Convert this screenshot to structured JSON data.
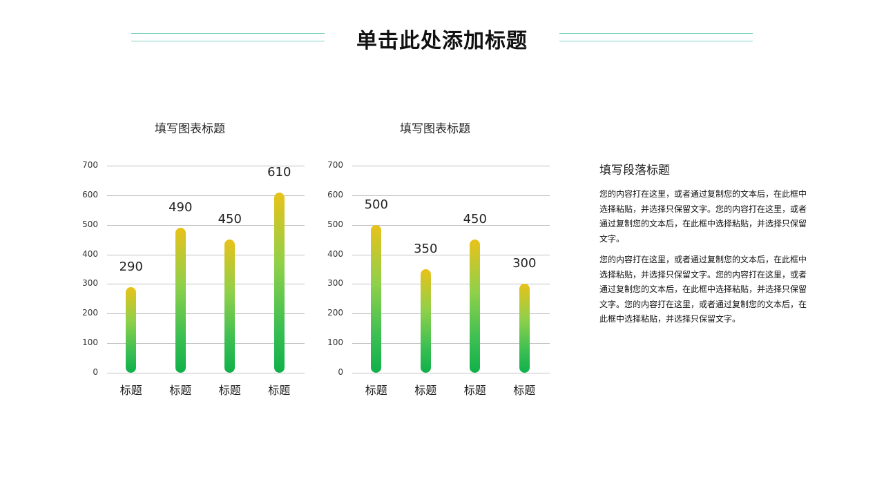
{
  "header": {
    "title": "单击此处添加标题",
    "accent_line_color": "#7fd3bf"
  },
  "chart_data": [
    {
      "type": "bar",
      "title": "填写图表标题",
      "categories": [
        "标题",
        "标题",
        "标题",
        "标题"
      ],
      "values": [
        290,
        490,
        450,
        610
      ],
      "xlabel": "",
      "ylabel": "",
      "ylim": [
        0,
        700
      ],
      "yticks": [
        0,
        100,
        200,
        300,
        400,
        500,
        600,
        700
      ],
      "grid": true,
      "data_labels": true,
      "bar_gradient": [
        "#e8c21a",
        "#10b04a"
      ]
    },
    {
      "type": "bar",
      "title": "填写图表标题",
      "categories": [
        "标题",
        "标题",
        "标题",
        "标题"
      ],
      "values": [
        500,
        350,
        450,
        300
      ],
      "xlabel": "",
      "ylabel": "",
      "ylim": [
        0,
        700
      ],
      "yticks": [
        0,
        100,
        200,
        300,
        400,
        500,
        600,
        700
      ],
      "grid": true,
      "data_labels": true,
      "bar_gradient": [
        "#e8c21a",
        "#10b04a"
      ]
    }
  ],
  "paragraph": {
    "title": "填写段落标题",
    "texts": [
      "您的内容打在这里，或者通过复制您的文本后，在此框中选择粘贴，并选择只保留文字。您的内容打在这里，或者通过复制您的文本后，在此框中选择粘贴，并选择只保留文字。",
      "您的内容打在这里，或者通过复制您的文本后，在此框中选择粘贴，并选择只保留文字。您的内容打在这里，或者通过复制您的文本后，在此框中选择粘贴，并选择只保留文字。您的内容打在这里，或者通过复制您的文本后，在此框中选择粘贴，并选择只保留文字。"
    ]
  }
}
